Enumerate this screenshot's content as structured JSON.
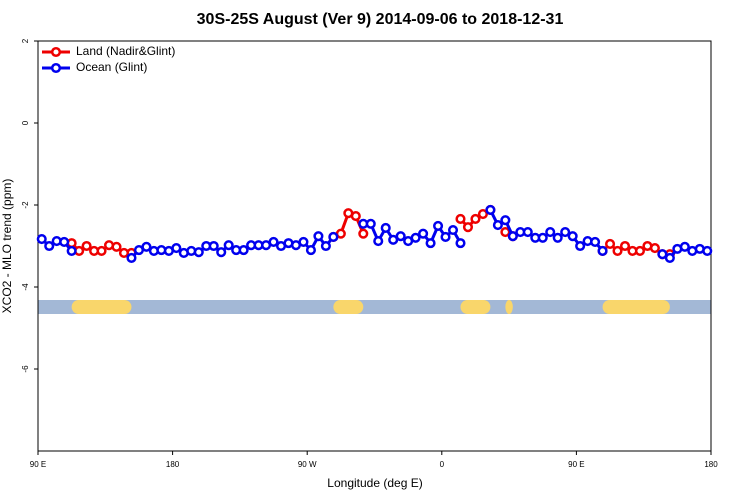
{
  "chart_data": {
    "type": "line",
    "title": "30S-25S August (Ver 9)   2014-09-06 to 2018-12-31",
    "x_label": "Longitude (deg E)",
    "y_label": "XCO2 - MLO trend (ppm)",
    "x": [
      92.5,
      97.5,
      102.5,
      107.5,
      112.5,
      117.5,
      122.5,
      127.5,
      132.5,
      137.5,
      142.5,
      147.5,
      152.5,
      157.5,
      162.5,
      167.5,
      172.5,
      177.5,
      182.5,
      187.5,
      192.5,
      197.5,
      202.5,
      207.5,
      212.5,
      217.5,
      222.5,
      227.5,
      232.5,
      237.5,
      242.5,
      247.5,
      252.5,
      257.5,
      262.5,
      267.5,
      272.5,
      277.5,
      282.5,
      287.5,
      292.5,
      297.5,
      302.5,
      307.5,
      312.5,
      317.5,
      322.5,
      327.5,
      332.5,
      337.5,
      342.5,
      347.5,
      352.5,
      357.5,
      362.5,
      367.5,
      372.5,
      377.5,
      382.5,
      387.5,
      392.5,
      397.5,
      402.5,
      407.5,
      412.5,
      417.5,
      422.5,
      427.5,
      432.5,
      437.5,
      442.5,
      447.5,
      452.5,
      457.5,
      462.5,
      467.5,
      472.5,
      477.5,
      482.5,
      487.5,
      492.5,
      497.5,
      502.5,
      507.5,
      512.5,
      517.5,
      522.5,
      527.5,
      532.5,
      537.5
    ],
    "series": [
      {
        "name": "Land (Nadir&Glint)",
        "color": "#ee0000",
        "values": [
          null,
          null,
          null,
          null,
          -2.93,
          -3.12,
          -3.0,
          -3.12,
          -3.12,
          -2.98,
          -3.02,
          -3.17,
          -3.17,
          null,
          null,
          null,
          null,
          null,
          null,
          null,
          null,
          null,
          null,
          null,
          null,
          null,
          null,
          null,
          null,
          null,
          null,
          null,
          null,
          null,
          null,
          null,
          null,
          null,
          null,
          -2.78,
          -2.7,
          -2.2,
          -2.27,
          -2.7,
          null,
          null,
          null,
          null,
          null,
          null,
          null,
          null,
          null,
          null,
          null,
          null,
          -2.34,
          -2.54,
          -2.34,
          -2.22,
          -2.12,
          null,
          -2.66,
          -2.76,
          null,
          null,
          null,
          null,
          null,
          null,
          null,
          null,
          null,
          null,
          null,
          -3.12,
          -2.95,
          -3.12,
          -3.0,
          -3.12,
          -3.12,
          -3.0,
          -3.05,
          -3.2,
          -3.2,
          null,
          null,
          null,
          null,
          null
        ]
      },
      {
        "name": "Ocean (Glint)",
        "color": "#0000ee",
        "values": [
          -2.83,
          -3.0,
          -2.88,
          -2.9,
          -3.12,
          null,
          null,
          null,
          null,
          null,
          null,
          null,
          -3.29,
          -3.1,
          -3.02,
          -3.12,
          -3.1,
          -3.12,
          -3.05,
          -3.17,
          -3.12,
          -3.15,
          -3.0,
          -3.0,
          -3.15,
          -2.98,
          -3.1,
          -3.1,
          -2.98,
          -2.98,
          -2.98,
          -2.9,
          -3.0,
          -2.93,
          -2.98,
          -2.9,
          -3.1,
          -2.76,
          -3.0,
          -2.78,
          null,
          null,
          null,
          -2.46,
          -2.46,
          -2.88,
          -2.56,
          -2.85,
          -2.76,
          -2.88,
          -2.8,
          -2.7,
          -2.93,
          -2.51,
          -2.78,
          -2.61,
          -2.93,
          null,
          null,
          null,
          -2.12,
          -2.49,
          -2.37,
          -2.76,
          -2.66,
          -2.66,
          -2.8,
          -2.8,
          -2.66,
          -2.8,
          -2.66,
          -2.76,
          -3.0,
          -2.88,
          -2.9,
          -3.12,
          null,
          null,
          null,
          null,
          null,
          null,
          null,
          -3.2,
          -3.29,
          -3.07,
          -3.02,
          -3.12,
          -3.07,
          -3.12
        ]
      }
    ],
    "xlim": [
      90,
      540
    ],
    "xticks": [
      {
        "value": 90,
        "label": "90 E"
      },
      {
        "value": 180,
        "label": "180"
      },
      {
        "value": 270,
        "label": "90 W"
      },
      {
        "value": 360,
        "label": "0"
      },
      {
        "value": 450,
        "label": "90 E"
      },
      {
        "value": 540,
        "label": "180"
      }
    ],
    "ylim": [
      -8,
      2
    ],
    "yticks": [
      2,
      0,
      -2,
      -4,
      -6
    ],
    "legend": "top-left"
  }
}
